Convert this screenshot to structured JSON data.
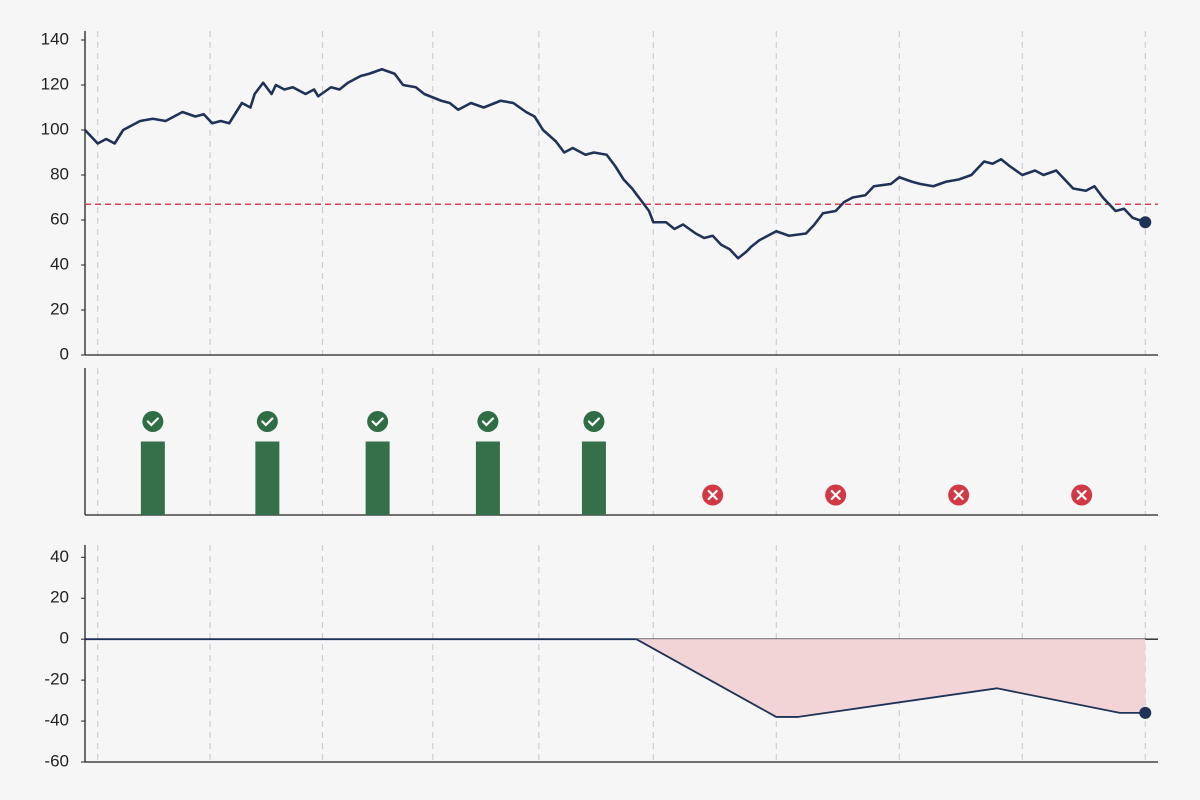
{
  "chart_data": [
    {
      "type": "line",
      "x": [
        0,
        3,
        5,
        7,
        9,
        13,
        16,
        19,
        21,
        23,
        26,
        28,
        30,
        32,
        34,
        37,
        39,
        40,
        42,
        44,
        45,
        47,
        49,
        52,
        54,
        55,
        58,
        60,
        62,
        65,
        67,
        70,
        73,
        75,
        78,
        80,
        84,
        86,
        88,
        91,
        94,
        98,
        101,
        104,
        106,
        108,
        111,
        113,
        115,
        118,
        120,
        123,
        125,
        127,
        129,
        131,
        133,
        134,
        137,
        139,
        141,
        144,
        146,
        148,
        150,
        152,
        154,
        156,
        157,
        159,
        161,
        163,
        166,
        170,
        172,
        174,
        177,
        179,
        181,
        184,
        186,
        190,
        192,
        195,
        197,
        200,
        203,
        206,
        209,
        212,
        214,
        216,
        218,
        221,
        224,
        226,
        229,
        231,
        233,
        236,
        238,
        240,
        243,
        245,
        247,
        250
      ],
      "series": [
        {
          "color": "#1f3358",
          "values": [
            100,
            94,
            96,
            94,
            100,
            104,
            105,
            104,
            106,
            108,
            106,
            107,
            103,
            104,
            103,
            112,
            110,
            116,
            121,
            116,
            120,
            118,
            119,
            116,
            118,
            115,
            119,
            118,
            121,
            124,
            125,
            127,
            125,
            120,
            119,
            116,
            113,
            112,
            109,
            112,
            110,
            113,
            112,
            108,
            106,
            100,
            95,
            90,
            92,
            89,
            90,
            89,
            84,
            78,
            74,
            69,
            64,
            59,
            59,
            56,
            58,
            54,
            52,
            53,
            49,
            47,
            43,
            46,
            48,
            51,
            53,
            55,
            53,
            54,
            58,
            63,
            64,
            68,
            70,
            71,
            75,
            76,
            79,
            77,
            76,
            75,
            77,
            78,
            80,
            86,
            85,
            87,
            84,
            80,
            82,
            80,
            82,
            78,
            74,
            73,
            75,
            70,
            64,
            65,
            61,
            59
          ]
        }
      ],
      "threshold": {
        "value": 67,
        "color": "#d9434f"
      },
      "xlim": [
        0,
        253
      ],
      "xticks": [
        3,
        29.5,
        56,
        82,
        107,
        134,
        163,
        192,
        221,
        250
      ],
      "ylim": [
        0,
        144
      ],
      "yticks": [
        0,
        20,
        40,
        60,
        80,
        100,
        120,
        140
      ]
    },
    {
      "type": "bar",
      "x": [
        16,
        43,
        69,
        95,
        120,
        148,
        177,
        206,
        235
      ],
      "values": [
        1,
        1,
        1,
        1,
        1,
        0,
        0,
        0,
        0
      ],
      "color": "#35704a",
      "pass_color": "#2f6e44",
      "fail_color": "#d13a45",
      "xlim": [
        0,
        253
      ],
      "ylim": [
        0,
        2
      ]
    },
    {
      "type": "area",
      "x": [
        0,
        130,
        163,
        168,
        215,
        244,
        250
      ],
      "series": [
        {
          "color": "#1f3358",
          "fill": "#f2d4d7",
          "values": [
            0,
            0,
            -38,
            -38,
            -24,
            -36,
            -36
          ]
        }
      ],
      "xlim": [
        0,
        253
      ],
      "ylim": [
        -60,
        46
      ],
      "yticks": [
        -60,
        -40,
        -20,
        0,
        20,
        40
      ]
    }
  ]
}
